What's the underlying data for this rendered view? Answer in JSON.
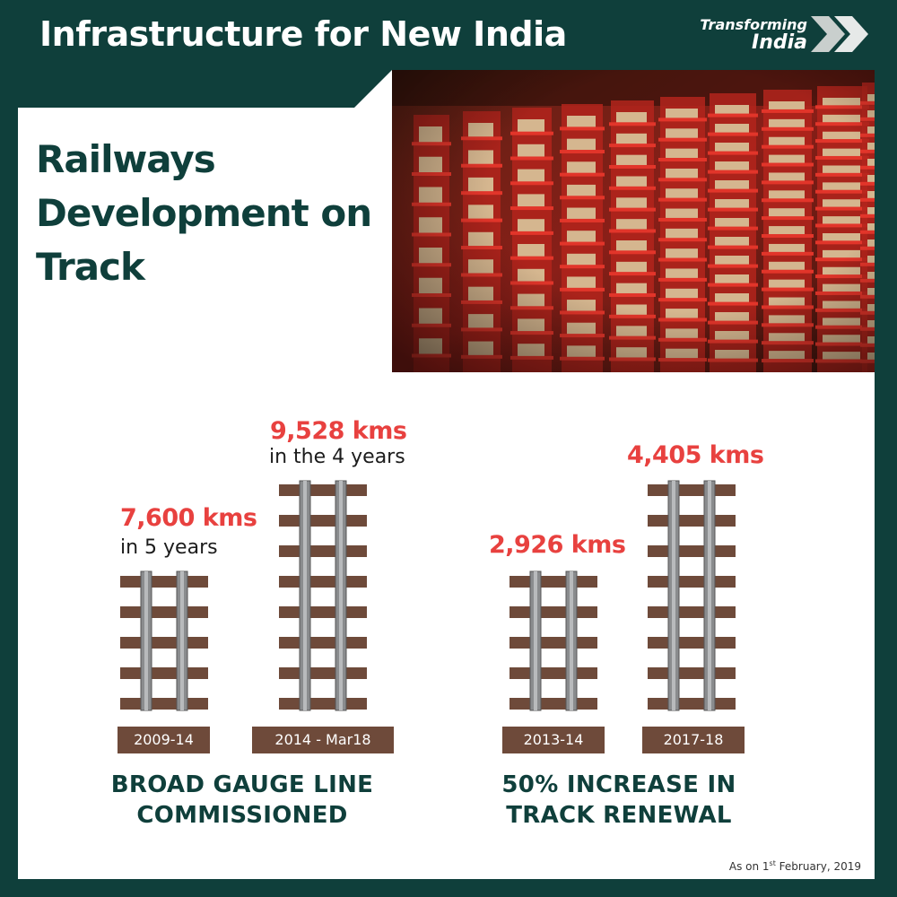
{
  "header": {
    "title": "Infrastructure for New India"
  },
  "brand": {
    "line1": "Transforming",
    "line2": "India"
  },
  "section": {
    "title": "Railways Development on Track"
  },
  "colors": {
    "background": "#0f3f3b",
    "value": "#e8413f",
    "sleeper": "#6e4a3a",
    "rail": "#8a8c8e",
    "caption": "#0f3f3b"
  },
  "chart_data": [
    {
      "type": "bar",
      "title": "BROAD GAUGE LINE COMMISSIONED",
      "categories": [
        "2009-14",
        "2014 - Mar18"
      ],
      "values": [
        7600,
        9528
      ],
      "unit": "kms",
      "value_labels": [
        "7,600 kms",
        "9,528 kms"
      ],
      "sub_labels": [
        "in 5 years",
        "in the 4 years"
      ]
    },
    {
      "type": "bar",
      "title": "50% INCREASE IN TRACK RENEWAL",
      "categories": [
        "2013-14",
        "2017-18"
      ],
      "values": [
        2926,
        4405
      ],
      "unit": "kms",
      "value_labels": [
        "2,926 kms",
        "4,405 kms"
      ],
      "sub_labels": [
        "",
        ""
      ]
    }
  ],
  "footnote": {
    "prefix": "As on 1",
    "sup": "st",
    "suffix": " February, 2019"
  }
}
